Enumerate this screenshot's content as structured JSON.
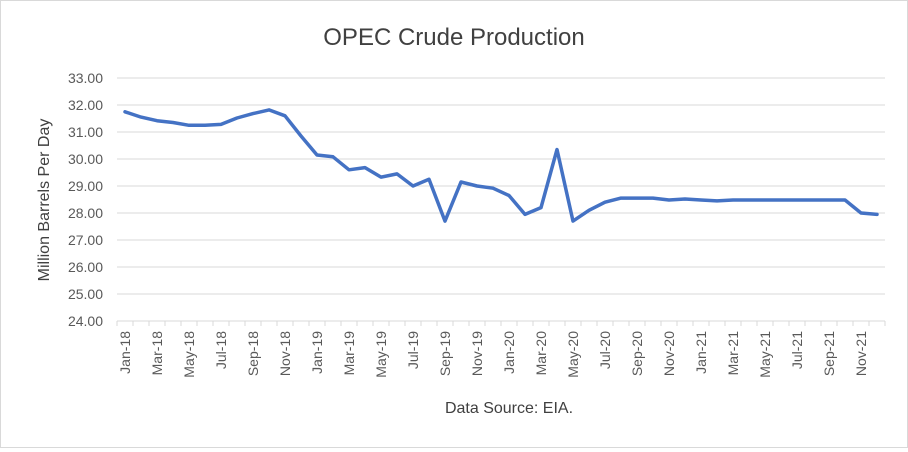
{
  "chart_data": {
    "type": "line",
    "title": "OPEC Crude Production",
    "ylabel": "Million Barrels Per Day",
    "xlabel": "Data Source: EIA.",
    "ylim": [
      24.0,
      33.0
    ],
    "y_ticks": [
      "24.00",
      "25.00",
      "26.00",
      "27.00",
      "28.00",
      "29.00",
      "30.00",
      "31.00",
      "32.00",
      "33.00"
    ],
    "x_tick_labels": [
      "Jan-18",
      "Mar-18",
      "May-18",
      "Jul-18",
      "Sep-18",
      "Nov-18",
      "Jan-19",
      "Mar-19",
      "May-19",
      "Jul-19",
      "Sep-19",
      "Nov-19",
      "Jan-20",
      "Mar-20",
      "May-20",
      "Jul-20",
      "Sep-20",
      "Nov-20",
      "Jan-21",
      "Mar-21",
      "May-21",
      "Jul-21",
      "Sep-21",
      "Nov-21"
    ],
    "grid": true,
    "legend": "none",
    "line_color": "#4472c4",
    "grid_color": "#d9d9d9",
    "series": [
      {
        "x": [
          "Jan-18",
          "Feb-18",
          "Mar-18",
          "Apr-18",
          "May-18",
          "Jun-18",
          "Jul-18",
          "Aug-18",
          "Sep-18",
          "Oct-18",
          "Nov-18",
          "Dec-18",
          "Jan-19",
          "Feb-19",
          "Mar-19",
          "Apr-19",
          "May-19",
          "Jun-19",
          "Jul-19",
          "Aug-19",
          "Sep-19",
          "Oct-19",
          "Nov-19",
          "Dec-19",
          "Jan-20",
          "Feb-20",
          "Mar-20",
          "Apr-20",
          "May-20",
          "Jun-20",
          "Jul-20",
          "Aug-20",
          "Sep-20",
          "Oct-20",
          "Nov-20",
          "Dec-20",
          "Jan-21",
          "Feb-21",
          "Mar-21",
          "Apr-21",
          "May-21",
          "Jun-21",
          "Jul-21",
          "Aug-21",
          "Sep-21",
          "Oct-21",
          "Nov-21",
          "Dec-21"
        ],
        "values": [
          31.75,
          31.55,
          31.42,
          31.35,
          31.25,
          31.25,
          31.28,
          31.52,
          31.68,
          31.82,
          31.6,
          30.85,
          30.15,
          30.08,
          29.6,
          29.68,
          29.33,
          29.45,
          29.0,
          29.25,
          27.7,
          29.15,
          29.0,
          28.92,
          28.65,
          27.95,
          28.2,
          30.35,
          27.7,
          28.1,
          28.4,
          28.55,
          28.55,
          28.55,
          28.48,
          28.52,
          28.48,
          28.45,
          28.48,
          28.48,
          28.48,
          28.48,
          28.48,
          28.48,
          28.48,
          28.48,
          28.0,
          27.95
        ]
      }
    ]
  }
}
